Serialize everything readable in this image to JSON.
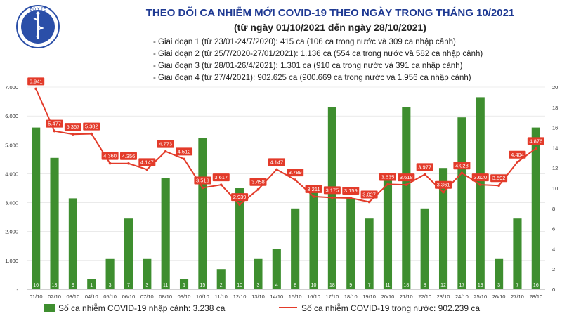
{
  "title": "THEO DÕI CA NHIỄM MỚI COVID-19 THEO NGÀY TRONG THÁNG 10/2021",
  "subtitle": "(từ ngày 01/10/2021 đến ngày 28/10/2021)",
  "logo": {
    "text": "BỘ Y TẾ",
    "icon": "ministry-of-health-emblem-icon"
  },
  "notes": [
    "Giai đoạn 1 (từ 23/01-24/7/2020): 415 ca (106 ca trong nước và 309 ca nhập cảnh)",
    "Giai đoạn 2 (từ 25/7/2020-27/01/2021): 1.136 ca (554 ca trong nước và 582 ca nhập cảnh)",
    "Giai đoạn 3 (từ 28/01-26/4/2021): 1.301 ca (910 ca trong nước và 391 ca nhập cảnh)",
    "Giai đoạn 4 (từ 27/4/2021): 902.625 ca (900.669 ca trong nước và 1.956 ca nhập cảnh)"
  ],
  "colors": {
    "bar": "#3e8e2f",
    "line": "#e33b2a",
    "title": "#1f3a93"
  },
  "chart_data": {
    "type": "bar+line",
    "categories": [
      "01/10",
      "02/10",
      "03/10",
      "04/10",
      "05/10",
      "06/10",
      "07/10",
      "08/10",
      "09/10",
      "10/10",
      "11/10",
      "12/10",
      "13/10",
      "14/10",
      "15/10",
      "16/10",
      "17/10",
      "18/10",
      "19/10",
      "20/10",
      "21/10",
      "22/10",
      "23/10",
      "24/10",
      "25/10",
      "26/10",
      "27/10",
      "28/10"
    ],
    "series": [
      {
        "name": "Số ca nhiễm COVID-19 nhập cảnh: 3.238 ca",
        "type": "bar",
        "axis": "right",
        "values": [
          16,
          13,
          9,
          1,
          3,
          7,
          3,
          11,
          1,
          15,
          2,
          10,
          3,
          4,
          8,
          10,
          18,
          9,
          7,
          11,
          18,
          8,
          12,
          17,
          19,
          3,
          7,
          16
        ],
        "labels": [
          "16",
          "13",
          "9",
          "1",
          "3",
          "7",
          "3",
          "11",
          "1",
          "15",
          "2",
          "10",
          "3",
          "4",
          "8",
          "10",
          "18",
          "9",
          "7",
          "11",
          "18",
          "8",
          "12",
          "17",
          "19",
          "3",
          "7",
          "16"
        ]
      },
      {
        "name": "Số ca nhiễm COVID-19 trong nước: 902.239 ca",
        "type": "line",
        "axis": "left",
        "values": [
          6941,
          5477,
          5367,
          5382,
          4360,
          4356,
          4147,
          4773,
          4512,
          3513,
          3617,
          2939,
          3458,
          4147,
          3789,
          3211,
          3175,
          3159,
          3027,
          3635,
          3618,
          3977,
          3361,
          4028,
          3620,
          3592,
          4404,
          4876
        ],
        "labels": [
          "6.941",
          "5.477",
          "5.367",
          "5.382",
          "4.360",
          "4.356",
          "4.147",
          "4.773",
          "4.512",
          "3.513",
          "3.617",
          "2.939",
          "3.458",
          "4.147",
          "3.789",
          "3.211",
          "3.175",
          "3.159",
          "3.027",
          "3.635",
          "3.618",
          "3.977",
          "3.361",
          "4.028",
          "3.620",
          "3.592",
          "4.404",
          "4.876"
        ]
      }
    ],
    "y_left": {
      "range": [
        0,
        7000
      ],
      "tick_values": [
        0,
        1000,
        2000,
        3000,
        4000,
        5000,
        6000,
        7000
      ],
      "tick_labels": [
        "-",
        "1.000",
        "2.000",
        "3.000",
        "4.000",
        "5.000",
        "6.000",
        "7.000"
      ]
    },
    "y_right": {
      "range": [
        0,
        20
      ],
      "tick_values": [
        0,
        2,
        4,
        6,
        8,
        10,
        12,
        14,
        16,
        18,
        20
      ],
      "tick_labels": [
        "0",
        "2",
        "4",
        "6",
        "8",
        "10",
        "12",
        "14",
        "16",
        "18",
        "20"
      ]
    },
    "legend": {
      "position": "bottom"
    }
  }
}
